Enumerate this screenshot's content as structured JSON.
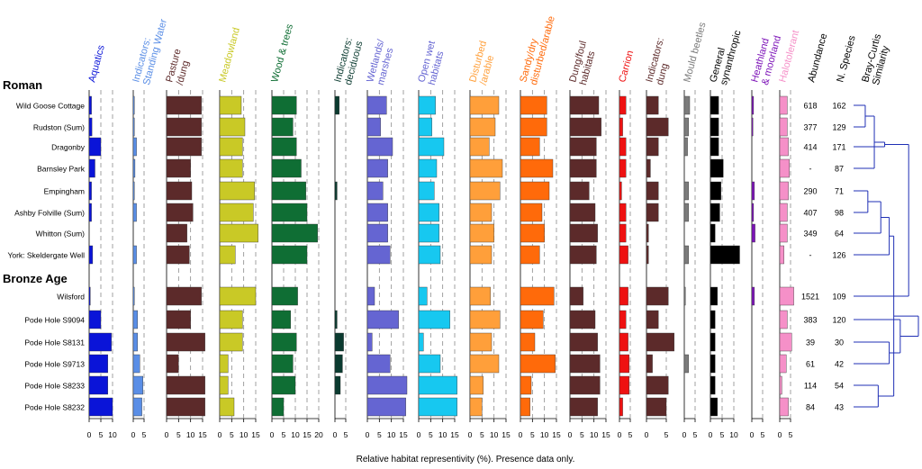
{
  "chart_data": {
    "type": "bar",
    "orientation": "horizontal",
    "xlabel": "Relative habitat representivity (%). Presence data only.",
    "groups": [
      {
        "label": "Roman",
        "sites": [
          "Wild Goose Cottage",
          "Rudston (Sum)",
          "Dragonby",
          "Barnsley Park",
          "Empingham",
          "Ashby Folville (Sum)",
          "Whitton (Sum)",
          "York: Skeldergate Well"
        ]
      },
      {
        "label": "Bronze Age",
        "sites": [
          "Wilsford",
          "Pode Hole S9094",
          "Pode Hole S8131",
          "Pode Hole S9713",
          "Pode Hole S8233",
          "Pode Hole S8232"
        ]
      }
    ],
    "series": [
      {
        "name": "Aquatics",
        "color": "#0a14d8",
        "label_color": "#0a14d8",
        "max": 10,
        "ticks": [
          0,
          5,
          10
        ],
        "values": [
          1,
          1.2,
          5,
          2.5,
          1,
          1,
          0,
          1.5,
          0.5,
          5,
          9.5,
          8,
          8,
          10
        ]
      },
      {
        "name": "Indicators: Standing Water",
        "color": "#5a8ee6",
        "label_color": "#5a8ee6",
        "max": 5,
        "ticks": [
          0,
          5
        ],
        "values": [
          0.5,
          0.5,
          1.5,
          0.8,
          0.3,
          1.5,
          0,
          1.5,
          0.5,
          2,
          2,
          3,
          4.5,
          4
        ]
      },
      {
        "name": "Pasture /dung",
        "color": "#5c2a2a",
        "label_color": "#5c2a2a",
        "max": 15,
        "ticks": [
          0,
          5,
          10,
          15
        ],
        "values": [
          14.5,
          14.5,
          14.5,
          10,
          10.5,
          11,
          8.5,
          9.5,
          14.5,
          10,
          16,
          5,
          16,
          16
        ]
      },
      {
        "name": "Meadowland",
        "color": "#c9c926",
        "label_color": "#c9c926",
        "max": 15,
        "ticks": [
          0,
          5,
          10,
          15
        ],
        "values": [
          9,
          10.5,
          9.5,
          9.5,
          14.5,
          14,
          16,
          6.5,
          15,
          9.5,
          9.5,
          3.5,
          3.5,
          6
        ]
      },
      {
        "name": "Wood & trees",
        "color": "#0f6e34",
        "label_color": "#0f6e34",
        "max": 20,
        "ticks": [
          0,
          5,
          10,
          15,
          20
        ],
        "values": [
          10.5,
          9,
          10.5,
          12.5,
          14.5,
          15,
          19.5,
          15,
          11,
          8,
          10.5,
          9,
          10,
          5
        ]
      },
      {
        "name": "Indicators: deciduous",
        "color": "#0b3b30",
        "label_color": "#0b3b30",
        "max": 5,
        "ticks": [
          0,
          5
        ],
        "values": [
          2,
          0,
          0,
          0,
          1,
          0,
          0,
          0,
          0,
          1,
          4,
          3.5,
          2.5,
          0
        ]
      },
      {
        "name": "Wetlands/ marshes",
        "color": "#6565d2",
        "label_color": "#6565d2",
        "max": 15,
        "ticks": [
          0,
          5,
          10,
          15
        ],
        "values": [
          8,
          5.5,
          10.5,
          8.5,
          6.5,
          8.5,
          8.5,
          9.5,
          3,
          13,
          2,
          9.5,
          16.5,
          16
        ]
      },
      {
        "name": "Open wet habitats",
        "color": "#17c8f0",
        "label_color": "#6565d2",
        "max": 15,
        "ticks": [
          0,
          5,
          10,
          15
        ],
        "values": [
          7,
          5.5,
          10.5,
          7.5,
          6.5,
          8.5,
          8.5,
          9,
          3.5,
          13,
          2,
          9,
          16,
          16
        ]
      },
      {
        "name": "Disturbed /arable",
        "color": "#ff9f3a",
        "label_color": "#ff9f3a",
        "max": 15,
        "ticks": [
          0,
          5,
          10,
          15
        ],
        "values": [
          12,
          10.5,
          8,
          13.5,
          12.5,
          9,
          10,
          9,
          8.5,
          12.5,
          9,
          12,
          5.5,
          5
        ]
      },
      {
        "name": "Sandy/dry disturbed/arable",
        "color": "#ff6a0a",
        "label_color": "#ff6a0a",
        "max": 15,
        "ticks": [
          0,
          5,
          10,
          15
        ],
        "values": [
          11,
          11,
          8,
          13.5,
          12,
          9,
          10,
          8,
          14,
          9.5,
          6,
          14.5,
          4.5,
          4
        ]
      },
      {
        "name": "Dung/foul habitats",
        "color": "#5c2a2a",
        "label_color": "#5c2a2a",
        "max": 15,
        "ticks": [
          0,
          5,
          10,
          15
        ],
        "values": [
          12,
          13,
          11,
          11,
          8,
          10.5,
          11.5,
          11,
          5.5,
          10.5,
          11.5,
          12.5,
          12.5,
          11.5
        ]
      },
      {
        "name": "Carrion",
        "color": "#ee1111",
        "label_color": "#ee1111",
        "max": 5,
        "ticks": [
          0,
          5
        ],
        "values": [
          3,
          1.5,
          3,
          3,
          1,
          3,
          3,
          4,
          4,
          3,
          4,
          4.5,
          4.5,
          1.5
        ]
      },
      {
        "name": "Indicators: dung",
        "color": "#5c2a2a",
        "label_color": "#5c2a2a",
        "max": 5,
        "ticks": [
          0,
          5
        ],
        "values": [
          3,
          5.5,
          3,
          1,
          3,
          3,
          0.5,
          0.5,
          5.5,
          3,
          7,
          1.5,
          5.5,
          5
        ]
      },
      {
        "name": "Mould beetles",
        "color": "#7b7b7b",
        "label_color": "#7b7b7b",
        "max": 5,
        "ticks": [
          0,
          5
        ],
        "values": [
          2.5,
          2,
          1.5,
          0,
          2,
          2,
          0,
          2,
          0.5,
          0,
          0,
          2,
          0,
          0
        ]
      },
      {
        "name": "General synanthropic",
        "color": "#000000",
        "label_color": "#000000",
        "max": 10,
        "ticks": [
          0,
          5,
          10
        ],
        "values": [
          3.5,
          3.5,
          3.5,
          5.5,
          4.5,
          4,
          2,
          12.5,
          3,
          2,
          2,
          2,
          2,
          3
        ]
      },
      {
        "name": "Heathland & moorland",
        "color": "#7d14b8",
        "label_color": "#7d14b8",
        "max": 5,
        "ticks": [
          0,
          5
        ],
        "values": [
          0.8,
          0.5,
          0,
          0,
          1.2,
          0.8,
          1.5,
          0,
          1.2,
          0,
          0,
          0,
          0,
          0
        ]
      },
      {
        "name": "Halotolerant",
        "color": "#f590c8",
        "label_color": "#f590c8",
        "max": 5,
        "ticks": [
          0,
          5
        ],
        "values": [
          3.5,
          3.5,
          4,
          4.5,
          4,
          3.5,
          3.5,
          2,
          6.5,
          3.5,
          5.5,
          3,
          1,
          4
        ]
      }
    ],
    "abundance": {
      "label": "Abundance",
      "values": [
        "618",
        "377",
        "414",
        "-",
        "290",
        "407",
        "349",
        "-",
        "1521",
        "383",
        "39",
        "61",
        "114",
        "84"
      ]
    },
    "species": {
      "label": "N. Species",
      "values": [
        "162",
        "129",
        "171",
        "87",
        "71",
        "98",
        "64",
        "126",
        "109",
        "120",
        "30",
        "42",
        "54",
        "43"
      ]
    },
    "dendrogram": {
      "label": "Bray-Curtis Similarity",
      "color": "#1f2fb5",
      "merges": [
        {
          "a": 0,
          "b": 1,
          "h": 0.18
        },
        {
          "a": 4,
          "b": 5,
          "h": 0.22
        },
        {
          "a": 3,
          "b": 14,
          "h": 0.32
        },
        {
          "a": 15,
          "b": 6,
          "h": 0.42
        },
        {
          "a": 2,
          "b": 16,
          "h": 0.48
        },
        {
          "a": 17,
          "b": 7,
          "h": 0.55
        },
        {
          "a": 12,
          "b": 13,
          "h": 0.38
        },
        {
          "a": 10,
          "b": 11,
          "h": 0.55
        },
        {
          "a": 20,
          "b": 19,
          "h": 0.62
        },
        {
          "a": 9,
          "b": 21,
          "h": 0.72
        },
        {
          "a": 18,
          "b": 8,
          "h": 0.85
        },
        {
          "a": 23,
          "b": 22,
          "h": 1.0
        }
      ]
    }
  }
}
